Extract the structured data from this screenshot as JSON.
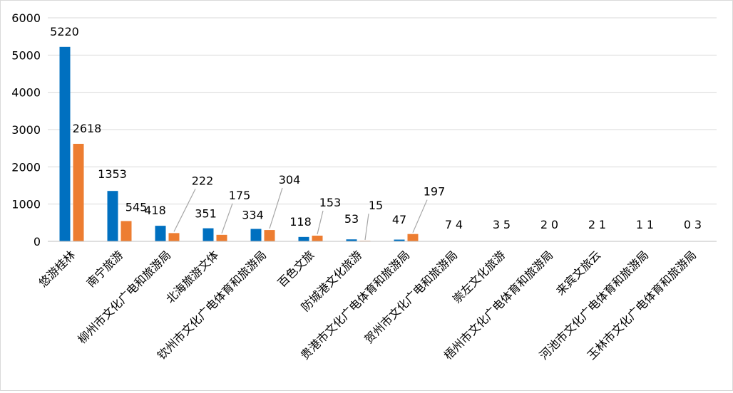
{
  "chart_data": {
    "type": "bar",
    "title": "",
    "xlabel": "",
    "ylabel": "",
    "ylim": [
      0,
      6000
    ],
    "yticks": [
      0,
      1000,
      2000,
      3000,
      4000,
      5000,
      6000
    ],
    "grid": true,
    "legend": "none",
    "categories": [
      "悠游桂林",
      "南宁旅游",
      "柳州市文化广电和旅游局",
      "北海旅游文体",
      "钦州市文化广电体育和旅游局",
      "百色文旅",
      "防城港文化旅游",
      "贵港市文化广电体育和旅游局",
      "贺州市文化广电和旅游局",
      "崇左文化旅游",
      "梧州市文化广电体育和旅游局",
      "来宾文旅云",
      "河池市文化广电体育和旅游局",
      "玉林市文化广电体育和旅游局"
    ],
    "series": [
      {
        "values": [
          5220,
          1353,
          418,
          351,
          334,
          118,
          53,
          47,
          7,
          3,
          2,
          2,
          1,
          0
        ],
        "color": "#0070c0"
      },
      {
        "values": [
          2618,
          545,
          222,
          175,
          304,
          153,
          15,
          197,
          4,
          5,
          0,
          1,
          1,
          3
        ],
        "color": "#ed7d31"
      }
    ],
    "data_labels": {
      "series1": [
        "5220",
        "1353",
        "418",
        "351",
        "334",
        "118",
        "53",
        "47",
        "7",
        "3",
        "2",
        "2",
        "1",
        "0"
      ],
      "series2": [
        "2618",
        "545",
        "222",
        "175",
        "304",
        "153",
        "15",
        "197",
        "4",
        "5",
        "0",
        "1",
        "1",
        "3"
      ]
    }
  }
}
